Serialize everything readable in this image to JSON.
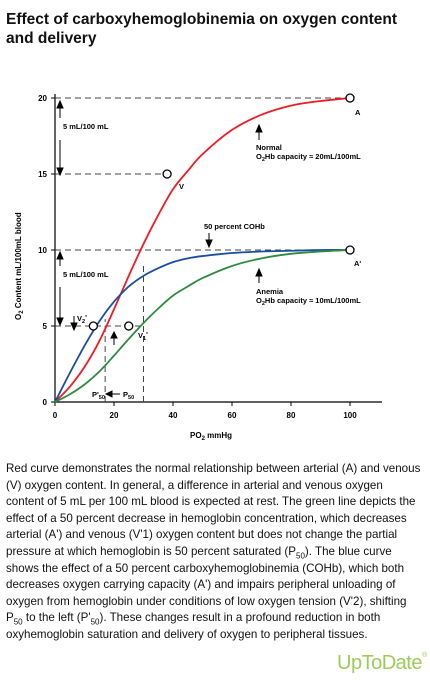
{
  "title": "Effect of carboxyhemoglobinemia on oxygen content and delivery",
  "chart_data": {
    "type": "line",
    "xlabel_main": "PO",
    "xlabel_sub": "2",
    "xlabel_unit": " mmHg",
    "ylabel_main": "O",
    "ylabel_sub": "2",
    "ylabel_rest": " Content mL/100mL blood",
    "xlim": [
      0,
      110
    ],
    "ylim": [
      0,
      21
    ],
    "xticks": [
      0,
      20,
      40,
      60,
      80,
      100
    ],
    "yticks": [
      0,
      5,
      10,
      15,
      20
    ],
    "grid": false,
    "series": [
      {
        "key": "normal",
        "color": "#ee1c24",
        "points": [
          [
            0,
            0
          ],
          [
            5,
            1.0
          ],
          [
            10,
            2.3
          ],
          [
            15,
            4.0
          ],
          [
            20,
            6.1
          ],
          [
            25,
            8.3
          ],
          [
            30,
            10.4
          ],
          [
            35,
            12.3
          ],
          [
            40,
            14.0
          ],
          [
            45,
            15.2
          ],
          [
            50,
            16.3
          ],
          [
            60,
            17.9
          ],
          [
            70,
            18.9
          ],
          [
            80,
            19.5
          ],
          [
            90,
            19.8
          ],
          [
            100,
            20.0
          ]
        ]
      },
      {
        "key": "cohb",
        "color": "#1a4fa0",
        "points": [
          [
            0,
            0
          ],
          [
            5,
            1.9
          ],
          [
            10,
            3.7
          ],
          [
            15,
            5.3
          ],
          [
            20,
            6.6
          ],
          [
            25,
            7.6
          ],
          [
            30,
            8.3
          ],
          [
            35,
            8.8
          ],
          [
            40,
            9.2
          ],
          [
            45,
            9.45
          ],
          [
            50,
            9.6
          ],
          [
            60,
            9.8
          ],
          [
            70,
            9.9
          ],
          [
            80,
            9.95
          ],
          [
            90,
            10.0
          ],
          [
            100,
            10.0
          ]
        ]
      },
      {
        "key": "anemia",
        "color": "#2e8b3e",
        "points": [
          [
            0,
            0
          ],
          [
            5,
            0.5
          ],
          [
            10,
            1.15
          ],
          [
            15,
            2.0
          ],
          [
            20,
            3.05
          ],
          [
            25,
            4.15
          ],
          [
            30,
            5.2
          ],
          [
            35,
            6.15
          ],
          [
            40,
            7.0
          ],
          [
            45,
            7.6
          ],
          [
            50,
            8.15
          ],
          [
            60,
            8.95
          ],
          [
            70,
            9.45
          ],
          [
            80,
            9.75
          ],
          [
            90,
            9.9
          ],
          [
            100,
            10.0
          ]
        ]
      }
    ],
    "annotations": {
      "point_a": "A",
      "point_v": "V",
      "point_a_prime": "A'",
      "point_v2": "V",
      "point_v2_sub": "2",
      "point_v2_mark": "'",
      "point_v1": "V",
      "point_v1_sub": "1",
      "point_v1_mark": "'",
      "gap_top": "5 mL/100 mL",
      "gap_bottom": "5 mL/100 mL",
      "normal_label": "Normal",
      "normal_cap_pre": "O",
      "normal_cap_sub": "2",
      "normal_cap_post": "Hb capacity ≈ 20mL/100mL",
      "cohb_label": "50 percent COHb",
      "anemia_label": "Anemia",
      "anemia_cap_pre": "O",
      "anemia_cap_sub": "2",
      "anemia_cap_post": "Hb capacity ≈ 10mL/100mL",
      "p50_prime_main": "P'",
      "p50_prime_sub": "50",
      "p50_main": "P",
      "p50_sub": "50"
    }
  },
  "caption": {
    "s1": "Red curve demonstrates the normal relationship between arterial (A) and venous (V) oxygen content. In general, a difference in arterial and venous oxygen content of 5 mL per 100 mL blood is expected at rest. The green line depicts the effect of a 50 percent decrease in hemoglobin concentration, which decreases arterial (A') and venous (V'1) oxygen content but does not change the partial pressure at which hemoglobin is 50 percent saturated (P",
    "s1_sub": "50",
    "s2": "). The blue curve shows the effect of a 50 percent carboxyhemoglobinemia (COHb), which both decreases oxygen carrying capacity (A') and impairs peripheral unloading of oxygen from hemoglobin under conditions of low oxygen tension (V'2), shifting P",
    "s2_sub": "50",
    "s3": " to the left (P'",
    "s3_sub": "50",
    "s4": "). These changes result in a profound reduction in both oxyhemoglobin saturation and delivery of oxygen to peripheral tissues."
  },
  "logo": {
    "text": "UpToDate",
    "mark": "®",
    "color": "#9ccc5a"
  }
}
